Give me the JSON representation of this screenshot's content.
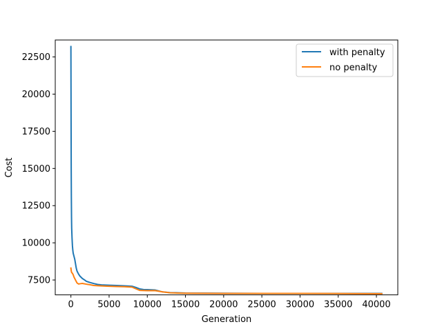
{
  "chart_data": {
    "type": "line",
    "title": "",
    "xlabel": "Generation",
    "ylabel": "Cost",
    "xlim": [
      -2050,
      42800
    ],
    "ylim": [
      6500,
      23640
    ],
    "xticks": [
      0,
      5000,
      10000,
      15000,
      20000,
      25000,
      30000,
      35000,
      40000
    ],
    "yticks": [
      7500,
      10000,
      12500,
      15000,
      17500,
      20000,
      22500
    ],
    "grid": false,
    "legend_position": "top-right",
    "series": [
      {
        "name": "with penalty",
        "color": "#1f77b4",
        "x": [
          0,
          20,
          40,
          60,
          80,
          100,
          150,
          200,
          250,
          300,
          400,
          500,
          600,
          700,
          800,
          1000,
          1200,
          1500,
          1800,
          2000,
          2500,
          3000,
          3500,
          4000,
          5000,
          6000,
          7000,
          8000,
          8500,
          9000,
          9500,
          10000,
          11000,
          12000,
          13000,
          14000,
          15000,
          20000,
          25000,
          30000,
          35000,
          40000,
          40700
        ],
        "y": [
          23200,
          19000,
          15000,
          13000,
          11700,
          11000,
          10300,
          9800,
          9500,
          9300,
          9100,
          8900,
          8600,
          8300,
          8100,
          7900,
          7750,
          7600,
          7500,
          7420,
          7330,
          7260,
          7200,
          7170,
          7150,
          7130,
          7110,
          7080,
          7000,
          6900,
          6860,
          6850,
          6830,
          6700,
          6650,
          6640,
          6620,
          6610,
          6600,
          6600,
          6600,
          6600,
          6600
        ]
      },
      {
        "name": "no penalty",
        "color": "#ff7f0e",
        "x": [
          0,
          50,
          100,
          200,
          300,
          400,
          600,
          800,
          1000,
          1200,
          1500,
          2000,
          2500,
          3000,
          4000,
          5000,
          6000,
          7000,
          8000,
          9000,
          10000,
          11000,
          12000,
          13000,
          14000,
          15000,
          20000,
          25000,
          30000,
          35000,
          40000,
          40700
        ],
        "y": [
          8300,
          8100,
          8000,
          7950,
          7850,
          7700,
          7500,
          7300,
          7230,
          7250,
          7270,
          7220,
          7180,
          7130,
          7100,
          7080,
          7060,
          7050,
          7020,
          6800,
          6780,
          6790,
          6700,
          6640,
          6620,
          6610,
          6600,
          6600,
          6600,
          6590,
          6580,
          6580
        ]
      }
    ]
  }
}
